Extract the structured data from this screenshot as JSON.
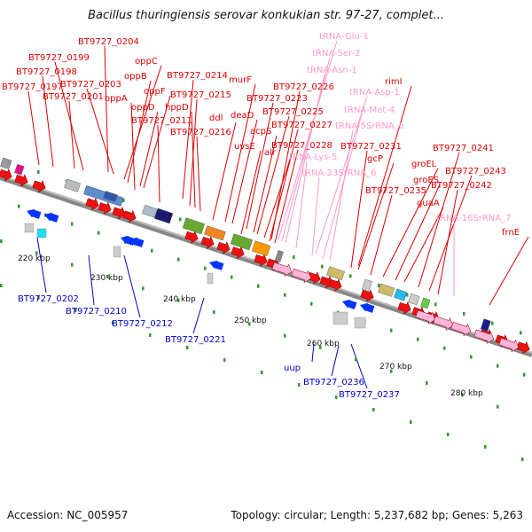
{
  "title": "Bacillus thuringiensis serovar konkukian str. 97-27, complet...",
  "footer": {
    "accession": "Accession: NC_005957",
    "topology": "Topology: circular; Length: 5,237,682 bp; Genes: 5,263"
  },
  "colors": {
    "forward_label": "#dd0000",
    "reverse_label": "#0000cc",
    "rna_label": "#ff99cc",
    "backbone": "#888888",
    "tick": "#339933"
  },
  "scale_labels": [
    "220 kbp",
    "230 kbp",
    "240 kbp",
    "250 kbp",
    "260 kbp",
    "270 kbp",
    "280 kbp"
  ],
  "forward_labels": [
    "BT9727_0204",
    "BT9727_0199",
    "BT9727_0198",
    "BT9727_0197",
    "BT9727_0203",
    "BT9727_0201",
    "oppC",
    "oppB",
    "oppA",
    "oppD",
    "oppF",
    "BT9727_0211",
    "BT9727_0214",
    "BT9727_0215",
    "hppD",
    "BT9727_0216",
    "ddl",
    "murF",
    "deaD",
    "BT9727_0223",
    "uvsE",
    "acpS",
    "BT9727_0225",
    "alr",
    "BT9727_0226",
    "BT9727_0227",
    "BT9727_0228",
    "rimI",
    "BT9727_0231",
    "gcP",
    "BT9727_0235",
    "groEL",
    "groES",
    "guaA",
    "BT9727_0241",
    "BT9727_0243",
    "BT9727_0242",
    "frnE"
  ],
  "rna_labels": [
    "tRNA-Glu-1",
    "tRNA-Ser-2",
    "tRNA-Asn-1",
    "tRNA-Asp-1",
    "tRNA-Met-4",
    "tRNA-5SrRNA_6",
    "tRNA-Lys-5",
    "tRNA-23SrRNA_6",
    "tRNA-16SrRNA_7"
  ],
  "reverse_labels": [
    "BT9727_0202",
    "BT9727_0210",
    "BT9727_0212",
    "BT9727_0221",
    "uup",
    "BT9727_0236",
    "BT9727_0237"
  ]
}
